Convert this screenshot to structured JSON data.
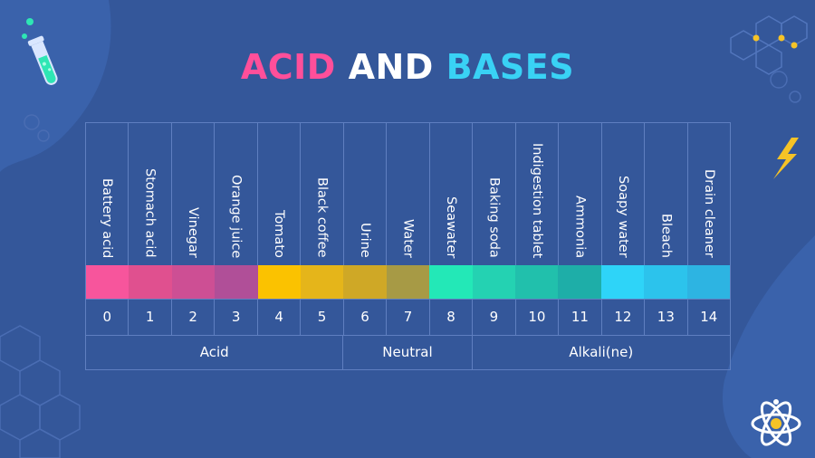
{
  "title": {
    "part1": "ACID",
    "part2": "AND",
    "part3": "BASES"
  },
  "colors": {
    "background": "#34579a",
    "title_acid": "#ff4f9a",
    "title_and": "#ffffff",
    "title_bases": "#39d2f5",
    "grid_line": "#5f7fc0"
  },
  "ph_scale": [
    {
      "label": "Battery acid",
      "ph": "0",
      "color": "#f7559c"
    },
    {
      "label": "Stomach acid",
      "ph": "1",
      "color": "#e0508f"
    },
    {
      "label": "Vinegar",
      "ph": "2",
      "color": "#cd4f94"
    },
    {
      "label": "Orange juice",
      "ph": "3",
      "color": "#b04f98"
    },
    {
      "label": "Tomato",
      "ph": "4",
      "color": "#fbc200"
    },
    {
      "label": "Black coffee",
      "ph": "5",
      "color": "#e5b51a"
    },
    {
      "label": "Urine",
      "ph": "6",
      "color": "#cfa826"
    },
    {
      "label": "Water",
      "ph": "7",
      "color": "#a79a45"
    },
    {
      "label": "Seawater",
      "ph": "8",
      "color": "#23e8b7"
    },
    {
      "label": "Baking soda",
      "ph": "9",
      "color": "#24d2b2"
    },
    {
      "label": "Indigestion tablet",
      "ph": "10",
      "color": "#21c0ac"
    },
    {
      "label": "Ammonia",
      "ph": "11",
      "color": "#1eaea8"
    },
    {
      "label": "Soapy water",
      "ph": "12",
      "color": "#2ed4f8"
    },
    {
      "label": "Bleach",
      "ph": "13",
      "color": "#2cc3ec"
    },
    {
      "label": "Drain cleaner",
      "ph": "14",
      "color": "#2db4e2"
    }
  ],
  "groups": [
    {
      "label": "Acid",
      "span": 6
    },
    {
      "label": "Neutral",
      "span": 3
    },
    {
      "label": "Alkali(ne)",
      "span": 6
    }
  ],
  "icons": [
    "test-tube-icon",
    "hexagon-molecule-icon",
    "lightning-icon",
    "atom-icon"
  ]
}
